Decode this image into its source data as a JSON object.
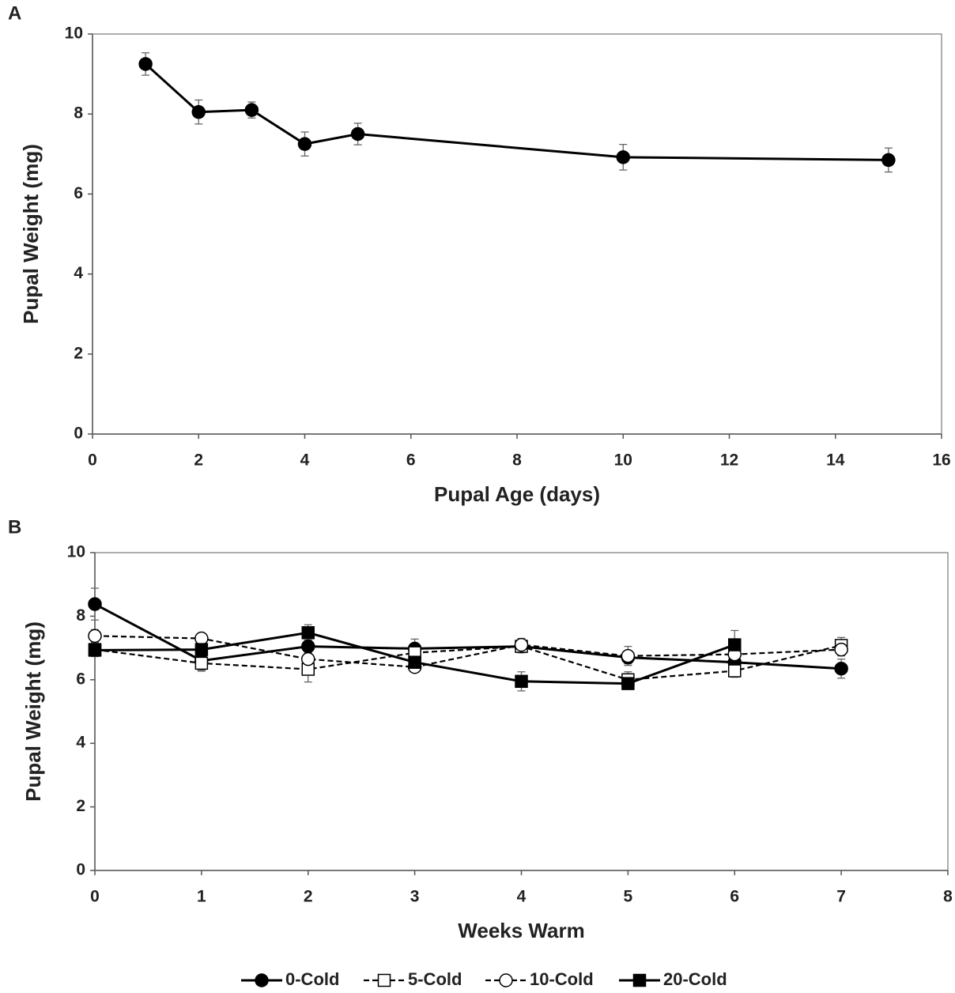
{
  "chart_data": [
    {
      "type": "line",
      "panel_label": "A",
      "xlabel": "Pupal Age (days)",
      "ylabel": "Pupal Weight (mg)",
      "x": [
        1,
        2,
        3,
        4,
        5,
        10,
        15
      ],
      "values": [
        9.25,
        8.05,
        8.1,
        7.25,
        7.5,
        6.92,
        6.85
      ],
      "errors": [
        0.28,
        0.3,
        0.2,
        0.3,
        0.27,
        0.32,
        0.3
      ],
      "color": "#000000",
      "marker": "circle",
      "filled": true,
      "dashed": false,
      "xlim": [
        0,
        16
      ],
      "xticks": [
        0,
        2,
        4,
        6,
        8,
        10,
        12,
        14,
        16
      ],
      "ylim": [
        0,
        10
      ],
      "yticks": [
        0,
        2,
        4,
        6,
        8,
        10
      ]
    },
    {
      "type": "line",
      "panel_label": "B",
      "xlabel": "Weeks Warm",
      "ylabel": "Pupal Weight (mg)",
      "x": [
        0,
        1,
        2,
        3,
        4,
        5,
        6,
        7
      ],
      "series": [
        {
          "name": "0-Cold",
          "color": "#000000",
          "marker": "circle",
          "filled": true,
          "dashed": false,
          "values": [
            8.38,
            6.6,
            7.05,
            6.98,
            7.05,
            6.7,
            6.55,
            6.35
          ],
          "errors": [
            0.5,
            0.3,
            0.2,
            0.3,
            0.15,
            0.2,
            0.2,
            0.3
          ]
        },
        {
          "name": "5-Cold",
          "color": "#000000",
          "marker": "square",
          "filled": false,
          "dashed": true,
          "values": [
            6.95,
            6.52,
            6.33,
            6.85,
            7.05,
            6.0,
            6.28,
            7.08
          ],
          "errors": [
            0.2,
            0.25,
            0.4,
            0.2,
            0.2,
            0.25,
            0.2,
            0.25
          ]
        },
        {
          "name": "10-Cold",
          "color": "#000000",
          "marker": "circle",
          "filled": false,
          "dashed": true,
          "values": [
            7.38,
            7.3,
            6.65,
            6.4,
            7.1,
            6.75,
            6.8,
            6.95
          ],
          "errors": [
            0.2,
            0.15,
            0.2,
            0.15,
            0.2,
            0.3,
            0.2,
            0.2
          ]
        },
        {
          "name": "20-Cold",
          "color": "#000000",
          "marker": "square",
          "filled": true,
          "dashed": false,
          "values": [
            6.93,
            6.95,
            7.48,
            6.55,
            5.95,
            5.88,
            7.1,
            null
          ],
          "errors": [
            0.2,
            0.2,
            0.25,
            0.2,
            0.3,
            0.15,
            0.45,
            null
          ]
        }
      ],
      "legend": "bottom",
      "xlim": [
        0,
        8
      ],
      "xticks": [
        0,
        1,
        2,
        3,
        4,
        5,
        6,
        7,
        8
      ],
      "ylim": [
        0,
        10
      ],
      "yticks": [
        0,
        2,
        4,
        6,
        8,
        10
      ]
    }
  ]
}
